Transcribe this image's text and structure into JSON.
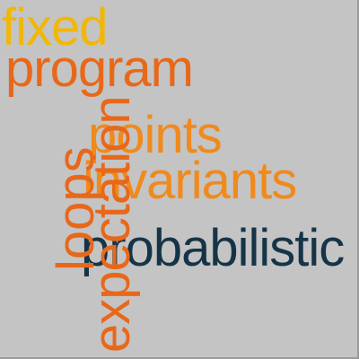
{
  "words": {
    "fixed": {
      "text": "fixed",
      "color": "#f2b705"
    },
    "program": {
      "text": "program",
      "color": "#e8681a"
    },
    "points": {
      "text": "points",
      "color": "#f08a1c"
    },
    "invariants": {
      "text": "invariants",
      "color": "#f08a1c"
    },
    "probabilistic": {
      "text": "probabilistic",
      "color": "#163447"
    },
    "loops": {
      "text": "loops",
      "color": "#e8681a"
    },
    "expectation": {
      "text": "expectation",
      "color": "#e8681a"
    }
  },
  "background_color": "#c4c4c4"
}
